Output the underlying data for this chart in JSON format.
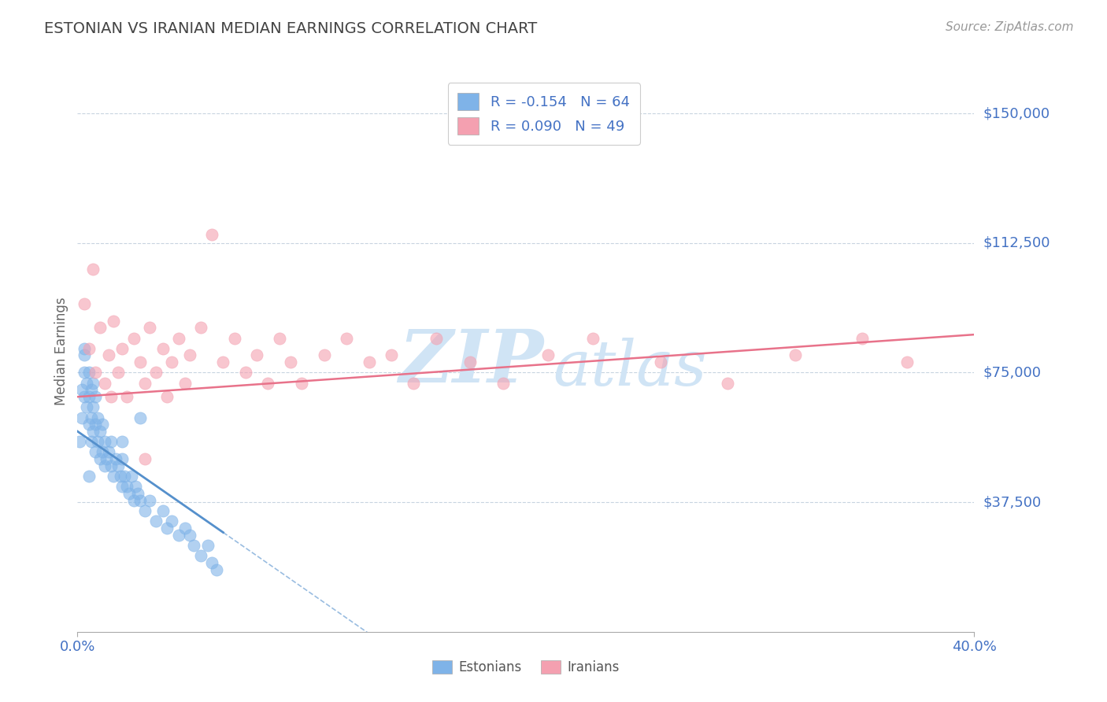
{
  "title": "ESTONIAN VS IRANIAN MEDIAN EARNINGS CORRELATION CHART",
  "source": "Source: ZipAtlas.com",
  "ylabel": "Median Earnings",
  "xmin": 0.0,
  "xmax": 0.4,
  "ymin": 0,
  "ymax": 162500,
  "ytick_vals": [
    37500,
    75000,
    112500,
    150000
  ],
  "ytick_labels": [
    "$37,500",
    "$75,000",
    "$112,500",
    "$150,000"
  ],
  "estonian_color": "#7fb3e8",
  "iranian_color": "#f4a0b0",
  "estonian_line_color": "#5590cc",
  "iranian_line_color": "#e8728a",
  "title_color": "#444444",
  "axis_label_color": "#4472c4",
  "background_color": "#ffffff",
  "watermark_color": "#d0e4f5",
  "estonian_x": [
    0.001,
    0.002,
    0.002,
    0.003,
    0.003,
    0.003,
    0.004,
    0.004,
    0.005,
    0.005,
    0.005,
    0.006,
    0.006,
    0.006,
    0.007,
    0.007,
    0.007,
    0.008,
    0.008,
    0.008,
    0.009,
    0.009,
    0.01,
    0.01,
    0.011,
    0.011,
    0.012,
    0.012,
    0.013,
    0.014,
    0.015,
    0.015,
    0.016,
    0.017,
    0.018,
    0.019,
    0.02,
    0.02,
    0.021,
    0.022,
    0.023,
    0.024,
    0.025,
    0.026,
    0.027,
    0.028,
    0.03,
    0.032,
    0.035,
    0.038,
    0.04,
    0.042,
    0.045,
    0.048,
    0.05,
    0.052,
    0.055,
    0.058,
    0.06,
    0.062,
    0.005,
    0.003,
    0.02,
    0.028
  ],
  "estonian_y": [
    55000,
    70000,
    62000,
    75000,
    68000,
    80000,
    65000,
    72000,
    60000,
    68000,
    75000,
    55000,
    62000,
    70000,
    58000,
    65000,
    72000,
    52000,
    60000,
    68000,
    55000,
    62000,
    50000,
    58000,
    52000,
    60000,
    48000,
    55000,
    50000,
    52000,
    48000,
    55000,
    45000,
    50000,
    48000,
    45000,
    42000,
    50000,
    45000,
    42000,
    40000,
    45000,
    38000,
    42000,
    40000,
    38000,
    35000,
    38000,
    32000,
    35000,
    30000,
    32000,
    28000,
    30000,
    28000,
    25000,
    22000,
    25000,
    20000,
    18000,
    45000,
    82000,
    55000,
    62000
  ],
  "iranian_x": [
    0.003,
    0.005,
    0.007,
    0.008,
    0.01,
    0.012,
    0.014,
    0.015,
    0.016,
    0.018,
    0.02,
    0.022,
    0.025,
    0.028,
    0.03,
    0.032,
    0.035,
    0.038,
    0.04,
    0.042,
    0.045,
    0.048,
    0.05,
    0.055,
    0.06,
    0.065,
    0.07,
    0.075,
    0.08,
    0.085,
    0.09,
    0.095,
    0.1,
    0.11,
    0.12,
    0.13,
    0.14,
    0.15,
    0.16,
    0.175,
    0.19,
    0.21,
    0.23,
    0.26,
    0.29,
    0.32,
    0.35,
    0.37,
    0.03
  ],
  "iranian_y": [
    95000,
    82000,
    105000,
    75000,
    88000,
    72000,
    80000,
    68000,
    90000,
    75000,
    82000,
    68000,
    85000,
    78000,
    72000,
    88000,
    75000,
    82000,
    68000,
    78000,
    85000,
    72000,
    80000,
    88000,
    115000,
    78000,
    85000,
    75000,
    80000,
    72000,
    85000,
    78000,
    72000,
    80000,
    85000,
    78000,
    80000,
    72000,
    85000,
    78000,
    72000,
    80000,
    85000,
    78000,
    72000,
    80000,
    85000,
    78000,
    50000
  ],
  "est_trend_intercept": 58000,
  "est_trend_slope": -450000,
  "iran_trend_intercept": 68000,
  "iran_trend_slope": 45000
}
